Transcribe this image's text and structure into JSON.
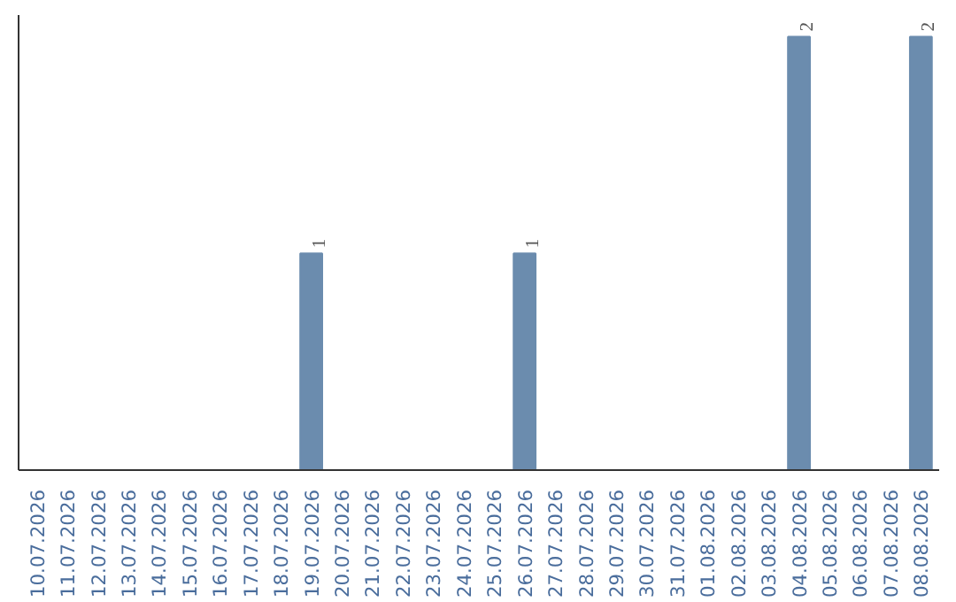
{
  "chart_data": {
    "type": "bar",
    "categories": [
      "10.07.2026",
      "11.07.2026",
      "12.07.2026",
      "13.07.2026",
      "14.07.2026",
      "15.07.2026",
      "16.07.2026",
      "17.07.2026",
      "18.07.2026",
      "19.07.2026",
      "20.07.2026",
      "21.07.2026",
      "22.07.2026",
      "23.07.2026",
      "24.07.2026",
      "25.07.2026",
      "26.07.2026",
      "27.07.2026",
      "28.07.2026",
      "29.07.2026",
      "30.07.2026",
      "31.07.2026",
      "01.08.2026",
      "02.08.2026",
      "03.08.2026",
      "04.08.2026",
      "05.08.2026",
      "06.08.2026",
      "07.08.2026",
      "08.08.2026"
    ],
    "values": [
      0,
      0,
      0,
      0,
      0,
      0,
      0,
      0,
      0,
      1,
      0,
      0,
      0,
      0,
      0,
      0,
      1,
      0,
      0,
      0,
      0,
      0,
      0,
      0,
      0,
      2,
      0,
      0,
      0,
      2
    ],
    "value_labels": [
      null,
      null,
      null,
      null,
      null,
      null,
      null,
      null,
      null,
      "1",
      null,
      null,
      null,
      null,
      null,
      null,
      "1",
      null,
      null,
      null,
      null,
      null,
      null,
      null,
      null,
      "2",
      null,
      null,
      null,
      "2"
    ],
    "color": "#6b8cae",
    "ylim": [
      0,
      2.1
    ],
    "tick_labels": "x",
    "grid": false
  }
}
